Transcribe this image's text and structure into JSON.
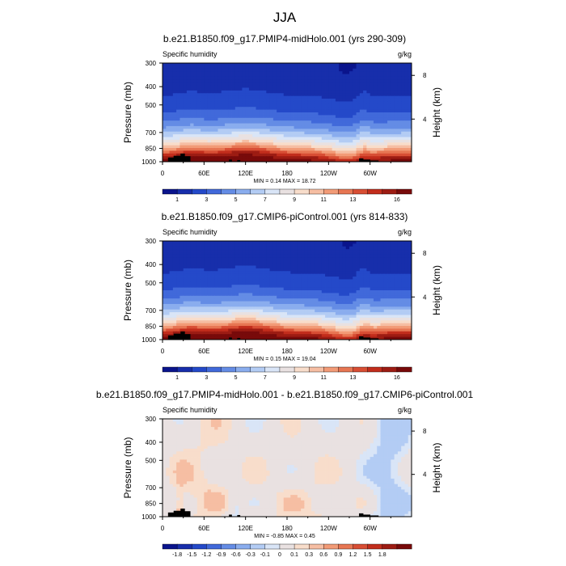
{
  "figure": {
    "title": "JJA"
  },
  "chart_data": [
    {
      "type": "heatmap",
      "title": "b.e21.B1850.f09_g17.PMIP4-midHolo.001 (yrs 290-309)",
      "left_label": "Specific humidity",
      "units": "g/kg",
      "ylabel": "Pressure (mb)",
      "right_ylabel": "Height (km)",
      "stats": "MIN =   0.14  MAX =   18.72",
      "min": 0.14,
      "max": 18.72,
      "xlim": [
        0,
        360
      ],
      "ylim": [
        1000,
        300
      ],
      "x_ticks": [
        "0",
        "60E",
        "120E",
        "180",
        "120W",
        "60W"
      ],
      "y_ticks": [
        "300",
        "400",
        "500",
        "700",
        "850",
        "1000"
      ],
      "right_ticks": [
        "8",
        "4"
      ],
      "colorbar_labels": [
        "1",
        "3",
        "5",
        "7",
        "9",
        "11",
        "13",
        "16"
      ]
    },
    {
      "type": "heatmap",
      "title": "b.e21.B1850.f09_g17.CMIP6-piControl.001 (yrs 814-833)",
      "left_label": "Specific humidity",
      "units": "g/kg",
      "ylabel": "Pressure (mb)",
      "right_ylabel": "Height (km)",
      "stats": "MIN =   0.15  MAX =   19.04",
      "min": 0.15,
      "max": 19.04,
      "xlim": [
        0,
        360
      ],
      "ylim": [
        1000,
        300
      ],
      "x_ticks": [
        "0",
        "60E",
        "120E",
        "180",
        "120W",
        "60W"
      ],
      "y_ticks": [
        "300",
        "400",
        "500",
        "700",
        "850",
        "1000"
      ],
      "right_ticks": [
        "8",
        "4"
      ],
      "colorbar_labels": [
        "1",
        "3",
        "5",
        "7",
        "9",
        "11",
        "13",
        "16"
      ]
    },
    {
      "type": "heatmap",
      "title": "b.e21.B1850.f09_g17.PMIP4-midHolo.001 - b.e21.B1850.f09_g17.CMIP6-piControl.001",
      "left_label": "Specific humidity",
      "units": "g/kg",
      "ylabel": "Pressure (mb)",
      "right_ylabel": "Height (km)",
      "stats": "MIN =   -0.85  MAX =   0.45",
      "min": -0.85,
      "max": 0.45,
      "xlim": [
        0,
        360
      ],
      "ylim": [
        1000,
        300
      ],
      "x_ticks": [
        "0",
        "60E",
        "120E",
        "180",
        "120W",
        "60W"
      ],
      "y_ticks": [
        "300",
        "400",
        "500",
        "700",
        "850",
        "1000"
      ],
      "right_ticks": [
        "8",
        "4"
      ],
      "colorbar_labels": [
        "-1.8",
        "-1.5",
        "-1.2",
        "-0.9",
        "-0.6",
        "-0.3",
        "-0.1",
        "0",
        "0.1",
        "0.3",
        "0.6",
        "0.9",
        "1.2",
        "1.5",
        "1.8"
      ]
    }
  ]
}
